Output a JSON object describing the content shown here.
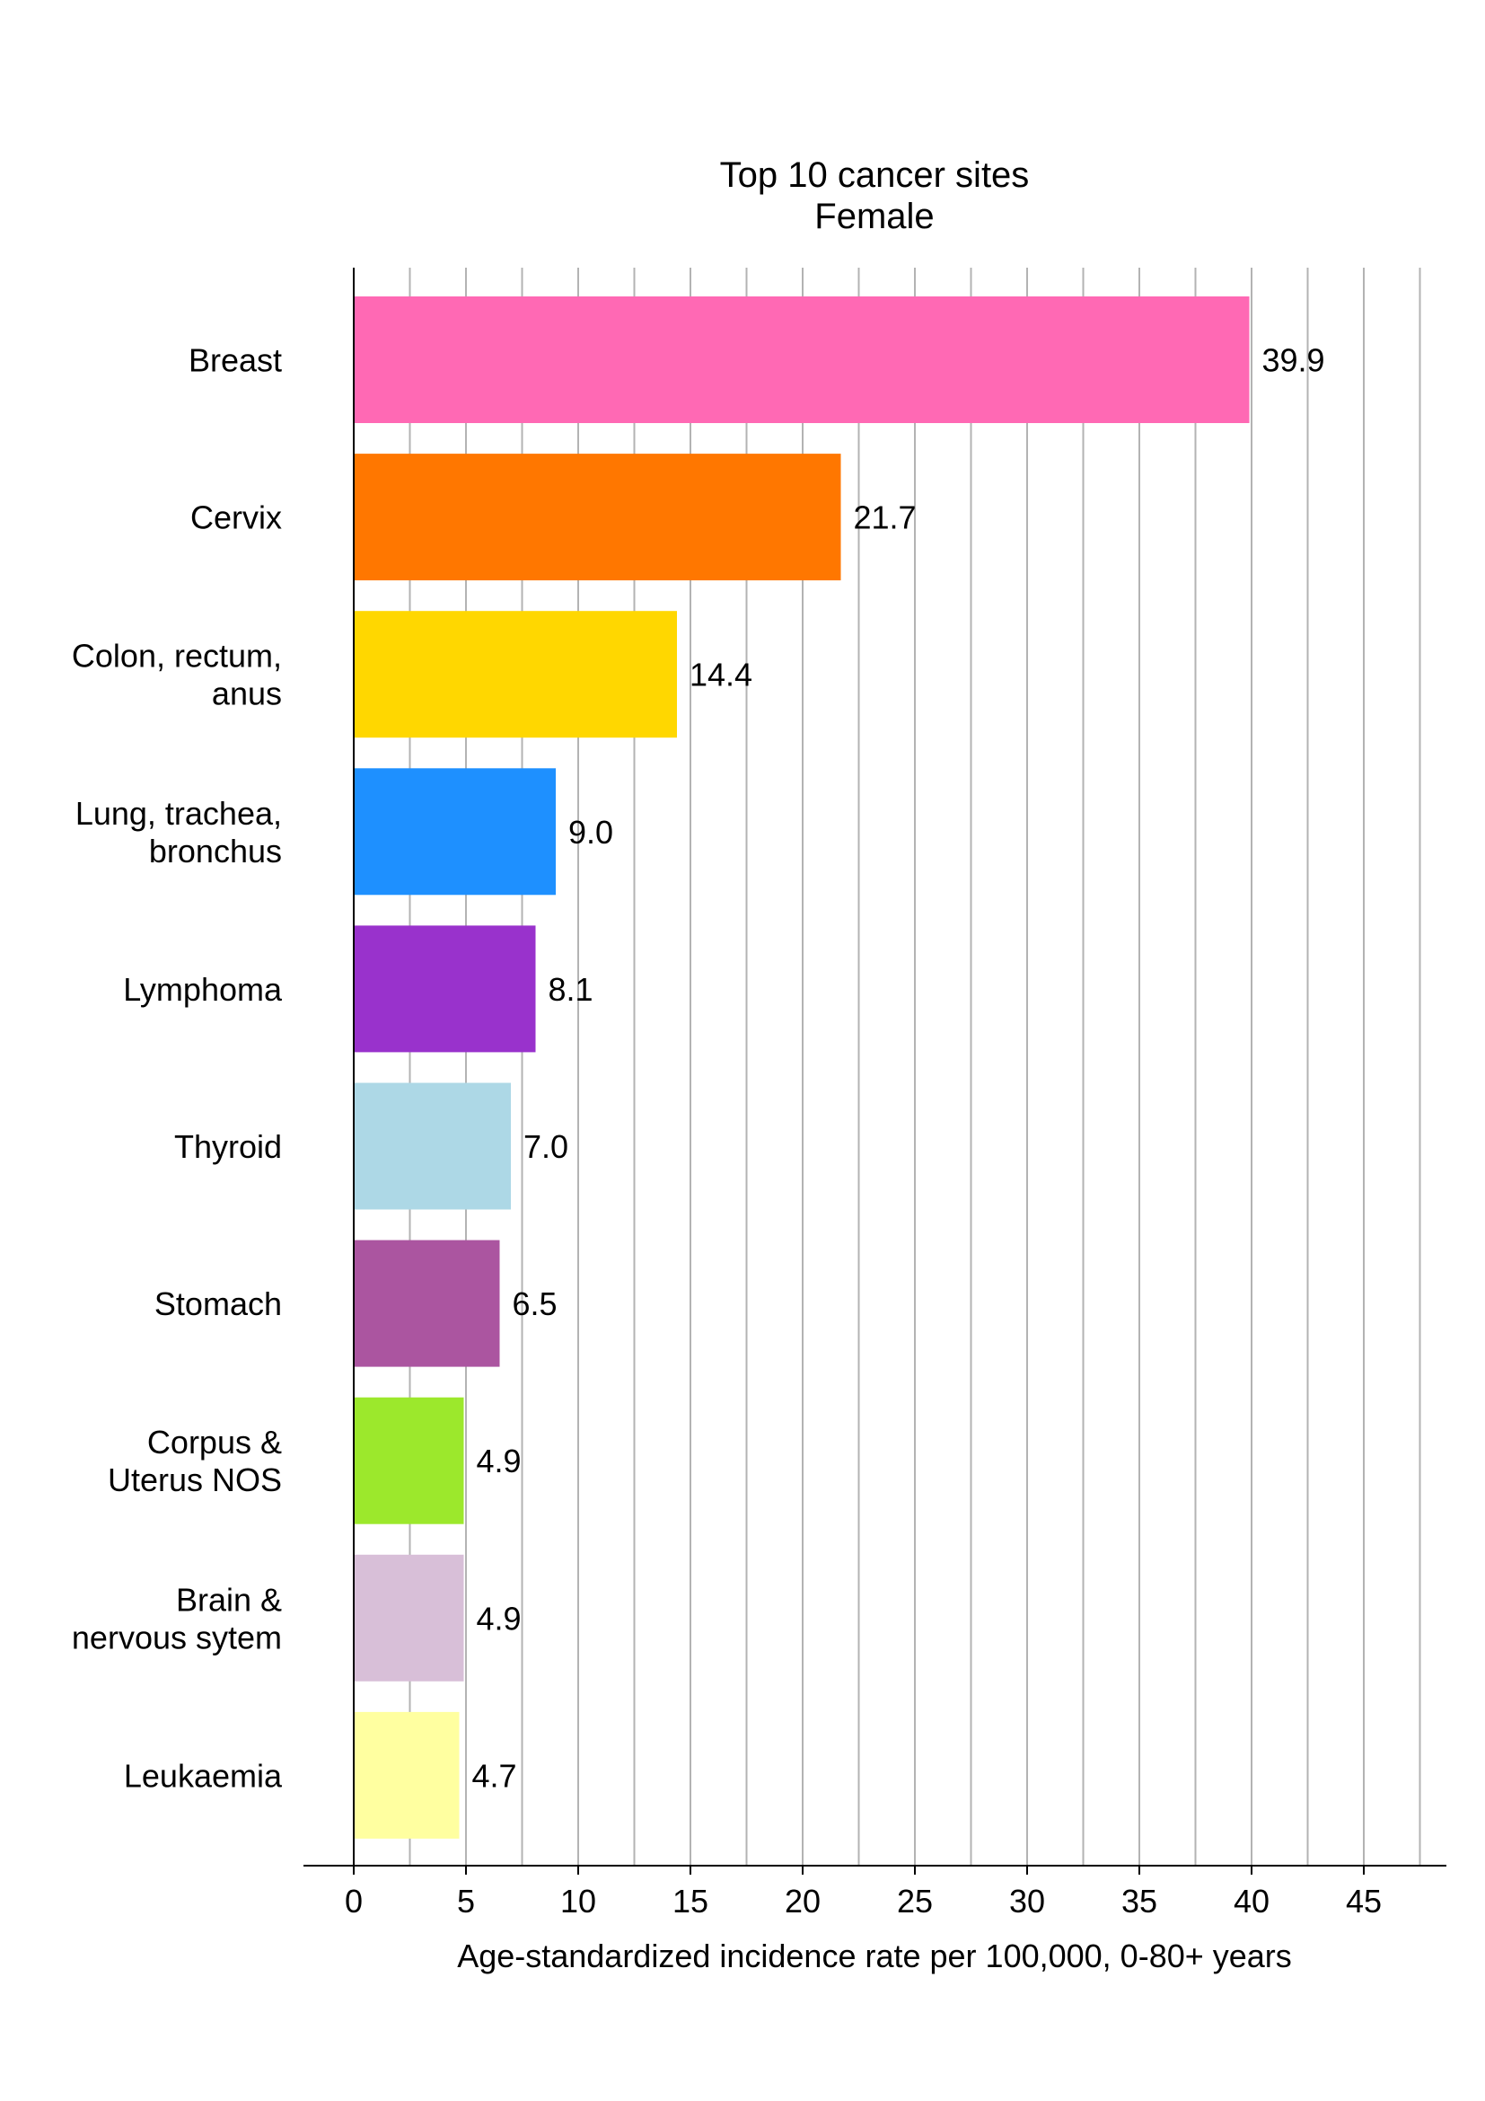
{
  "chart_data": {
    "type": "bar",
    "orientation": "horizontal",
    "title": [
      "Top 10 cancer sites",
      "Female"
    ],
    "categories": [
      [
        "Breast"
      ],
      [
        "Cervix"
      ],
      [
        "Colon, rectum,",
        "anus"
      ],
      [
        "Lung, trachea,",
        "bronchus"
      ],
      [
        "Lymphoma"
      ],
      [
        "Thyroid"
      ],
      [
        "Stomach"
      ],
      [
        "Corpus &",
        "Uterus NOS"
      ],
      [
        "Brain &",
        "nervous sytem"
      ],
      [
        "Leukaemia"
      ]
    ],
    "values": [
      39.9,
      21.7,
      14.4,
      9.0,
      8.1,
      7.0,
      6.5,
      4.9,
      4.9,
      4.7
    ],
    "value_labels": [
      "39.9",
      "21.7",
      "14.4",
      "9.0",
      "8.1",
      "7.0",
      "6.5",
      "4.9",
      "4.9",
      "4.7"
    ],
    "colors": [
      "#FF69B4",
      "#FF7700",
      "#FFD700",
      "#1E90FF",
      "#9932CC",
      "#ADD8E6",
      "#AB55A0",
      "#9CE82C",
      "#D8BFD8",
      "#FFFFA0"
    ],
    "xlabel": "Age-standardized incidence rate per 100,000, 0-80+ years",
    "ylabel": "",
    "xlim": [
      0,
      47.5
    ],
    "xticks": [
      0,
      5,
      10,
      15,
      20,
      25,
      30,
      35,
      40,
      45
    ],
    "grid": "vertical",
    "legend": "none"
  }
}
